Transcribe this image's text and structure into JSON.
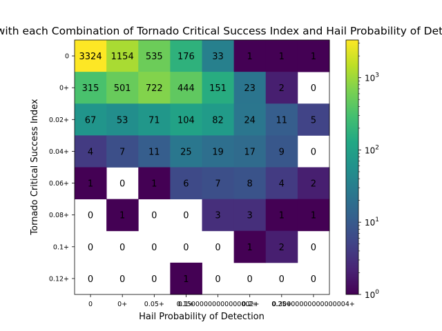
{
  "chart_data": {
    "type": "heatmap",
    "title": "Days with each Combination of Tornado Critical Success Index and Hail Probability of Detection",
    "xlabel": "Hail Probability of Detection",
    "ylabel": "Tornado Critical Success Index",
    "x_categories": [
      "0",
      "0+",
      "0.05+",
      "0.1+",
      "0.15000000000000002+",
      "0.2+",
      "0.25+",
      "0.30000000000000004+"
    ],
    "y_categories": [
      "0",
      "0+",
      "0.02+",
      "0.04+",
      "0.06+",
      "0.08+",
      "0.1+",
      "0.12+"
    ],
    "values": [
      [
        3324,
        1154,
        535,
        176,
        33,
        1,
        1,
        1
      ],
      [
        315,
        501,
        722,
        444,
        151,
        23,
        2,
        0
      ],
      [
        67,
        53,
        71,
        104,
        82,
        24,
        11,
        5
      ],
      [
        4,
        7,
        11,
        25,
        19,
        17,
        9,
        0
      ],
      [
        1,
        0,
        1,
        6,
        7,
        8,
        4,
        2
      ],
      [
        0,
        1,
        0,
        0,
        3,
        3,
        1,
        1
      ],
      [
        0,
        0,
        0,
        0,
        0,
        1,
        2,
        0
      ],
      [
        0,
        0,
        0,
        1,
        0,
        0,
        0,
        0
      ]
    ],
    "colorbar": {
      "scale": "log",
      "colormap": "viridis",
      "range": [
        1,
        3324
      ],
      "ticks": [
        1,
        10,
        100,
        1000
      ],
      "tick_labels": [
        "10",
        "10",
        "10",
        "10"
      ],
      "tick_exponents": [
        "0",
        "1",
        "2",
        "3"
      ]
    },
    "zero_cells": "white (masked)",
    "grid": false
  }
}
